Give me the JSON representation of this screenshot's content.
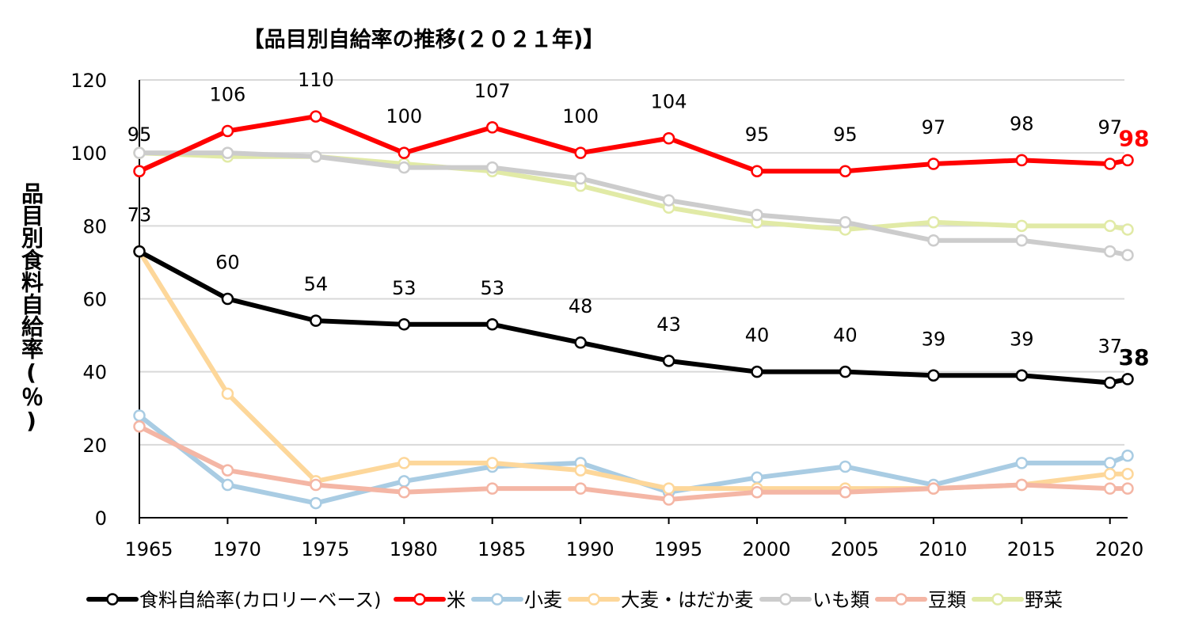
{
  "chart_data": {
    "type": "line",
    "title": "【品目別自給率の推移(２０２１年)】",
    "xlabel": "",
    "ylabel": "品目別食料自給率(％)",
    "ylim": [
      0,
      120
    ],
    "yticks": [
      0,
      20,
      40,
      60,
      80,
      100,
      120
    ],
    "x": [
      1965,
      1970,
      1975,
      1980,
      1985,
      1990,
      1995,
      2000,
      2005,
      2010,
      2015,
      2020,
      2021
    ],
    "x_tick_labels": [
      "1965",
      "1970",
      "1975",
      "1980",
      "1985",
      "1990",
      "1995",
      "2000",
      "2005",
      "2010",
      "2015",
      "2020"
    ],
    "grid": true,
    "legend_position": "bottom",
    "series": [
      {
        "name": "食料自給率(カロリーベース)",
        "color": "#000000",
        "values": [
          73,
          60,
          54,
          53,
          53,
          48,
          43,
          40,
          40,
          39,
          39,
          37,
          38
        ],
        "data_labels": [
          "73",
          "60",
          "54",
          "53",
          "53",
          "48",
          "43",
          "40",
          "40",
          "39",
          "39",
          "37"
        ],
        "highlight_label": "38",
        "highlight_color": "#000000"
      },
      {
        "name": "米",
        "color": "#ff0000",
        "values": [
          95,
          106,
          110,
          100,
          107,
          100,
          104,
          95,
          95,
          97,
          98,
          97,
          98
        ],
        "data_labels": [
          "95",
          "106",
          "110",
          "100",
          "107",
          "100",
          "104",
          "95",
          "95",
          "97",
          "98",
          "97"
        ],
        "highlight_label": "98",
        "highlight_color": "#ff0000"
      },
      {
        "name": "小麦",
        "color": "#a9cce3",
        "values": [
          28,
          9,
          4,
          10,
          14,
          15,
          7,
          11,
          14,
          9,
          15,
          15,
          17
        ]
      },
      {
        "name": "大麦・はだか麦",
        "color": "#fdd79a",
        "values": [
          73,
          34,
          10,
          15,
          15,
          13,
          8,
          8,
          8,
          8,
          9,
          12,
          12
        ]
      },
      {
        "name": "いも類",
        "color": "#cccccc",
        "values": [
          100,
          100,
          99,
          96,
          96,
          93,
          87,
          83,
          81,
          76,
          76,
          73,
          72
        ]
      },
      {
        "name": "豆類",
        "color": "#f4b6a5",
        "values": [
          25,
          13,
          9,
          7,
          8,
          8,
          5,
          7,
          7,
          8,
          9,
          8,
          8
        ]
      },
      {
        "name": "野菜",
        "color": "#e1eaa6",
        "values": [
          100,
          99,
          99,
          97,
          95,
          91,
          85,
          81,
          79,
          81,
          80,
          80,
          79
        ]
      }
    ]
  }
}
